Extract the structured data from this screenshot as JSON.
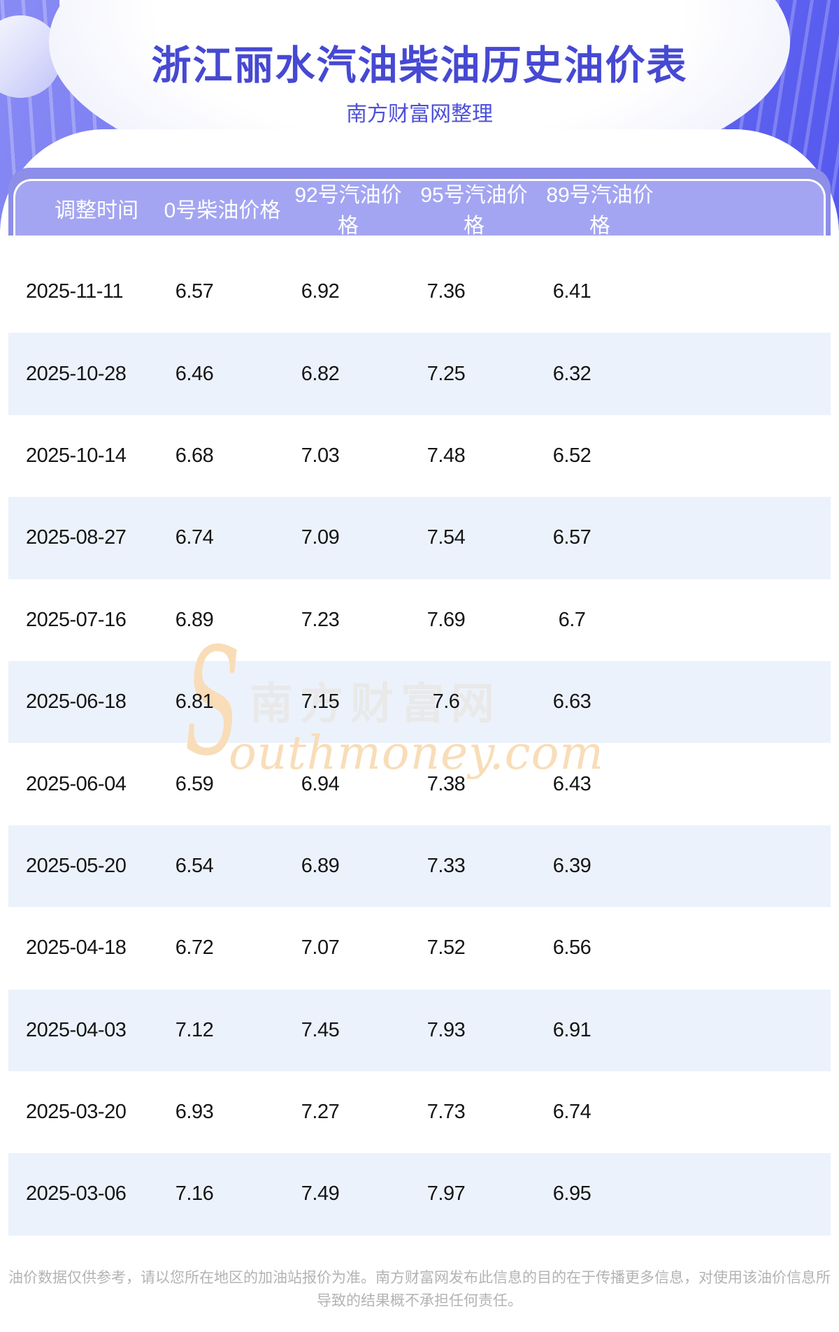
{
  "header": {
    "title": "浙江丽水汽油柴油历史油价表",
    "subtitle": "南方财富网整理"
  },
  "table": {
    "columns": [
      "调整时间",
      "0号柴油价格",
      "92号汽油价格",
      "95号汽油价格",
      "89号汽油价格"
    ],
    "rows": [
      [
        "2025-11-11",
        "6.57",
        "6.92",
        "7.36",
        "6.41"
      ],
      [
        "2025-10-28",
        "6.46",
        "6.82",
        "7.25",
        "6.32"
      ],
      [
        "2025-10-14",
        "6.68",
        "7.03",
        "7.48",
        "6.52"
      ],
      [
        "2025-08-27",
        "6.74",
        "7.09",
        "7.54",
        "6.57"
      ],
      [
        "2025-07-16",
        "6.89",
        "7.23",
        "7.69",
        "6.7"
      ],
      [
        "2025-06-18",
        "6.81",
        "7.15",
        "7.6",
        "6.63"
      ],
      [
        "2025-06-04",
        "6.59",
        "6.94",
        "7.38",
        "6.43"
      ],
      [
        "2025-05-20",
        "6.54",
        "6.89",
        "7.33",
        "6.39"
      ],
      [
        "2025-04-18",
        "6.72",
        "7.07",
        "7.52",
        "6.56"
      ],
      [
        "2025-04-03",
        "7.12",
        "7.45",
        "7.93",
        "6.91"
      ],
      [
        "2025-03-20",
        "6.93",
        "7.27",
        "7.73",
        "6.74"
      ],
      [
        "2025-03-06",
        "7.16",
        "7.49",
        "7.97",
        "6.95"
      ]
    ]
  },
  "watermark": {
    "initial": "S",
    "cn": "南方财富网",
    "url": "outhmoney.com"
  },
  "footer": {
    "disclaimer": "油价数据仅供参考，请以您所在地区的加油站报价为准。南方财富网发布此信息的目的在于传播更多信息，对使用该油价信息所导致的结果概不承担任何责任。"
  },
  "colors": {
    "hero_purple": "#6f72f1",
    "band_dark": "#8c8ee9",
    "band_light": "#a3a5f2",
    "row_alt": "#ecf2fb",
    "title_blue": "#4649d2",
    "watermark_gray": "#e9e9e9",
    "watermark_tan": "#f8ddb8",
    "footer_gray": "#b3b3b3"
  }
}
